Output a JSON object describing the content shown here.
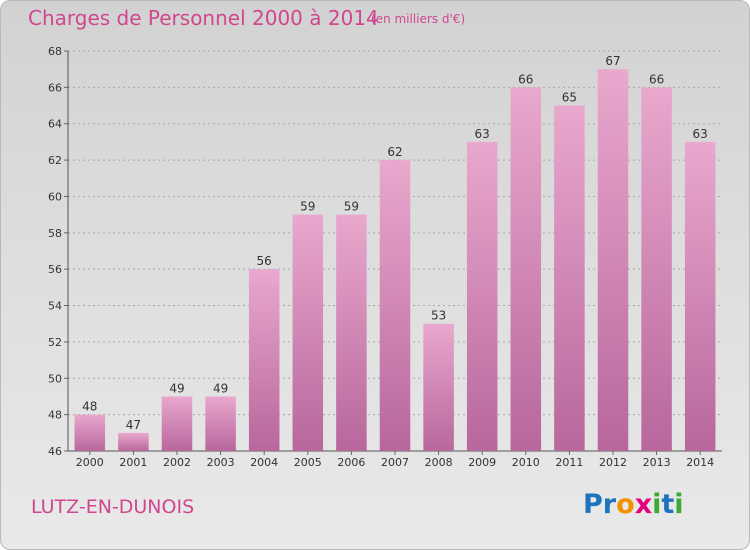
{
  "header": {
    "title": "Charges de Personnel 2000 à 2014",
    "subtitle": "(en milliers d'€)"
  },
  "footer": {
    "commune": "LUTZ-EN-DUNOIS",
    "logo_letters": [
      {
        "char": "P",
        "color": "#1e73be"
      },
      {
        "char": "r",
        "color": "#1e73be"
      },
      {
        "char": "o",
        "color": "#f39200"
      },
      {
        "char": "x",
        "color": "#e6007e"
      },
      {
        "char": "i",
        "color": "#3aaa35"
      },
      {
        "char": "t",
        "color": "#1e73be"
      },
      {
        "char": "i",
        "color": "#3aaa35"
      }
    ]
  },
  "colors": {
    "bar_top": "#e9a8cd",
    "bar_bottom": "#b8679c",
    "accent": "#d0478f"
  },
  "chart_data": {
    "type": "bar",
    "title": "Charges de Personnel 2000 à 2014",
    "subtitle": "(en milliers d'€)",
    "categories": [
      "2000",
      "2001",
      "2002",
      "2003",
      "2004",
      "2005",
      "2006",
      "2007",
      "2008",
      "2009",
      "2010",
      "2011",
      "2012",
      "2013",
      "2014"
    ],
    "values": [
      48,
      47,
      49,
      49,
      56,
      59,
      59,
      62,
      53,
      63,
      66,
      65,
      67,
      66,
      63
    ],
    "ylim": [
      46,
      68
    ],
    "yticks": [
      46,
      48,
      50,
      52,
      54,
      56,
      58,
      60,
      62,
      64,
      66,
      68
    ],
    "grid": true,
    "legend": "none"
  }
}
